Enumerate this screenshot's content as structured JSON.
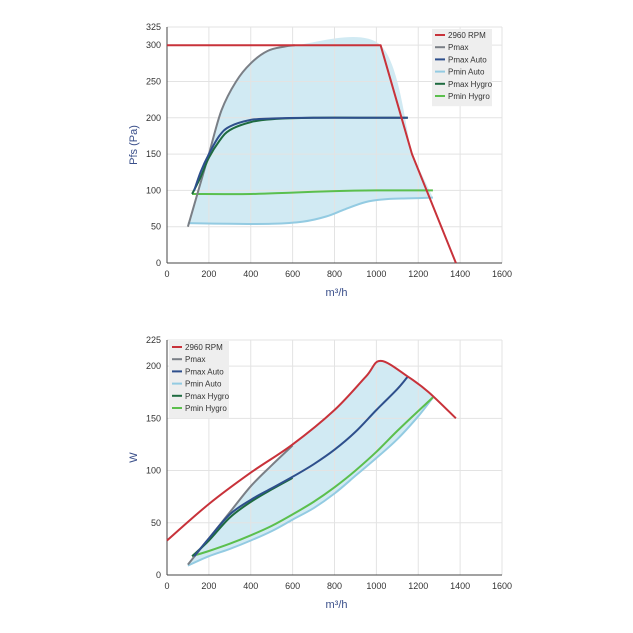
{
  "chart_data": [
    {
      "type": "line",
      "ylabel": "Pfs (Pa)",
      "xlabel": "m³/h",
      "xlim": [
        0,
        1600
      ],
      "ylim": [
        0,
        325
      ],
      "xticks": [
        "0",
        "200",
        "400",
        "600",
        "800",
        "1000",
        "1200",
        "1400",
        "1600"
      ],
      "yticks": [
        "0",
        "50",
        "100",
        "150",
        "200",
        "250",
        "300",
        "325"
      ],
      "grid": true,
      "legend_position": "top-right",
      "operating_area_color": "#cfe9f2",
      "series": [
        {
          "name": "2960 RPM",
          "color": "#c8323a",
          "points": [
            [
              0,
              300
            ],
            [
              1020,
              300
            ],
            [
              1170,
              150
            ],
            [
              1380,
              0
            ]
          ]
        },
        {
          "name": "Pmax",
          "color": "#7a7f86",
          "points": [
            [
              100,
              50
            ],
            [
              150,
              100
            ],
            [
              200,
              150
            ],
            [
              260,
              210
            ],
            [
              330,
              250
            ],
            [
              400,
              275
            ],
            [
              480,
              292
            ],
            [
              560,
              298
            ],
            [
              610,
              300
            ]
          ]
        },
        {
          "name": "Pmax Auto",
          "color": "#2e4f8c",
          "points": [
            [
              130,
              100
            ],
            [
              160,
              125
            ],
            [
              200,
              150
            ],
            [
              250,
              175
            ],
            [
              300,
              188
            ],
            [
              400,
              197
            ],
            [
              500,
              199
            ],
            [
              700,
              200
            ],
            [
              1000,
              200
            ],
            [
              1150,
              200
            ]
          ]
        },
        {
          "name": "Pmin Auto",
          "color": "#93cbe2",
          "points": [
            [
              100,
              55
            ],
            [
              300,
              54
            ],
            [
              500,
              54
            ],
            [
              650,
              57
            ],
            [
              760,
              64
            ],
            [
              850,
              74
            ],
            [
              950,
              84
            ],
            [
              1050,
              88
            ],
            [
              1150,
              89
            ],
            [
              1270,
              90
            ]
          ]
        },
        {
          "name": "Pmax Hygro",
          "color": "#1e6b40",
          "points": [
            [
              120,
              95
            ],
            [
              160,
              118
            ],
            [
              200,
              145
            ],
            [
              250,
              168
            ],
            [
              300,
              183
            ],
            [
              400,
              194
            ],
            [
              500,
              198
            ],
            [
              700,
              200
            ],
            [
              1000,
              200
            ],
            [
              1150,
              200
            ]
          ]
        },
        {
          "name": "Pmin Hygro",
          "color": "#5bbf4d",
          "points": [
            [
              120,
              95
            ],
            [
              400,
              95
            ],
            [
              600,
              97
            ],
            [
              800,
              99
            ],
            [
              1000,
              100
            ],
            [
              1200,
              100
            ],
            [
              1270,
              100
            ]
          ]
        }
      ]
    },
    {
      "type": "line",
      "ylabel": "W",
      "xlabel": "m³/h",
      "xlim": [
        0,
        1600
      ],
      "ylim": [
        0,
        225
      ],
      "xticks": [
        "0",
        "200",
        "400",
        "600",
        "800",
        "1000",
        "1200",
        "1400",
        "1600"
      ],
      "yticks": [
        "0",
        "50",
        "100",
        "150",
        "200",
        "225"
      ],
      "grid": true,
      "legend_position": "top-left",
      "operating_area_color": "#cfe9f2",
      "series": [
        {
          "name": "2960 RPM",
          "color": "#c8323a",
          "points": [
            [
              0,
              33
            ],
            [
              200,
              68
            ],
            [
              400,
              98
            ],
            [
              600,
              125
            ],
            [
              800,
              158
            ],
            [
              950,
              190
            ],
            [
              1020,
              205
            ],
            [
              1150,
              190
            ],
            [
              1250,
              175
            ],
            [
              1380,
              150
            ]
          ]
        },
        {
          "name": "Pmax",
          "color": "#7a7f86",
          "points": [
            [
              100,
              10
            ],
            [
              200,
              35
            ],
            [
              300,
              60
            ],
            [
              400,
              85
            ],
            [
              500,
              105
            ],
            [
              600,
              124
            ]
          ]
        },
        {
          "name": "Pmax Auto",
          "color": "#2e4f8c",
          "points": [
            [
              130,
              18
            ],
            [
              200,
              35
            ],
            [
              300,
              58
            ],
            [
              400,
              72
            ],
            [
              500,
              83
            ],
            [
              600,
              94
            ],
            [
              700,
              106
            ],
            [
              800,
              120
            ],
            [
              900,
              137
            ],
            [
              1000,
              158
            ],
            [
              1100,
              178
            ],
            [
              1150,
              190
            ]
          ]
        },
        {
          "name": "Pmin Auto",
          "color": "#93cbe2",
          "points": [
            [
              100,
              9
            ],
            [
              200,
              18
            ],
            [
              300,
              25
            ],
            [
              400,
              33
            ],
            [
              500,
              42
            ],
            [
              600,
              53
            ],
            [
              700,
              64
            ],
            [
              800,
              78
            ],
            [
              900,
              95
            ],
            [
              1000,
              112
            ],
            [
              1100,
              130
            ],
            [
              1200,
              152
            ],
            [
              1270,
              170
            ]
          ]
        },
        {
          "name": "Pmax Hygro",
          "color": "#1e6b40",
          "points": [
            [
              120,
              18
            ],
            [
              200,
              33
            ],
            [
              300,
              55
            ],
            [
              400,
              70
            ],
            [
              500,
              82
            ],
            [
              600,
              93
            ]
          ]
        },
        {
          "name": "Pmin Hygro",
          "color": "#5bbf4d",
          "points": [
            [
              120,
              18
            ],
            [
              200,
              23
            ],
            [
              300,
              30
            ],
            [
              400,
              38
            ],
            [
              500,
              47
            ],
            [
              600,
              58
            ],
            [
              700,
              70
            ],
            [
              800,
              84
            ],
            [
              900,
              100
            ],
            [
              1000,
              118
            ],
            [
              1100,
              138
            ],
            [
              1200,
              157
            ],
            [
              1270,
              170
            ]
          ]
        }
      ]
    }
  ]
}
